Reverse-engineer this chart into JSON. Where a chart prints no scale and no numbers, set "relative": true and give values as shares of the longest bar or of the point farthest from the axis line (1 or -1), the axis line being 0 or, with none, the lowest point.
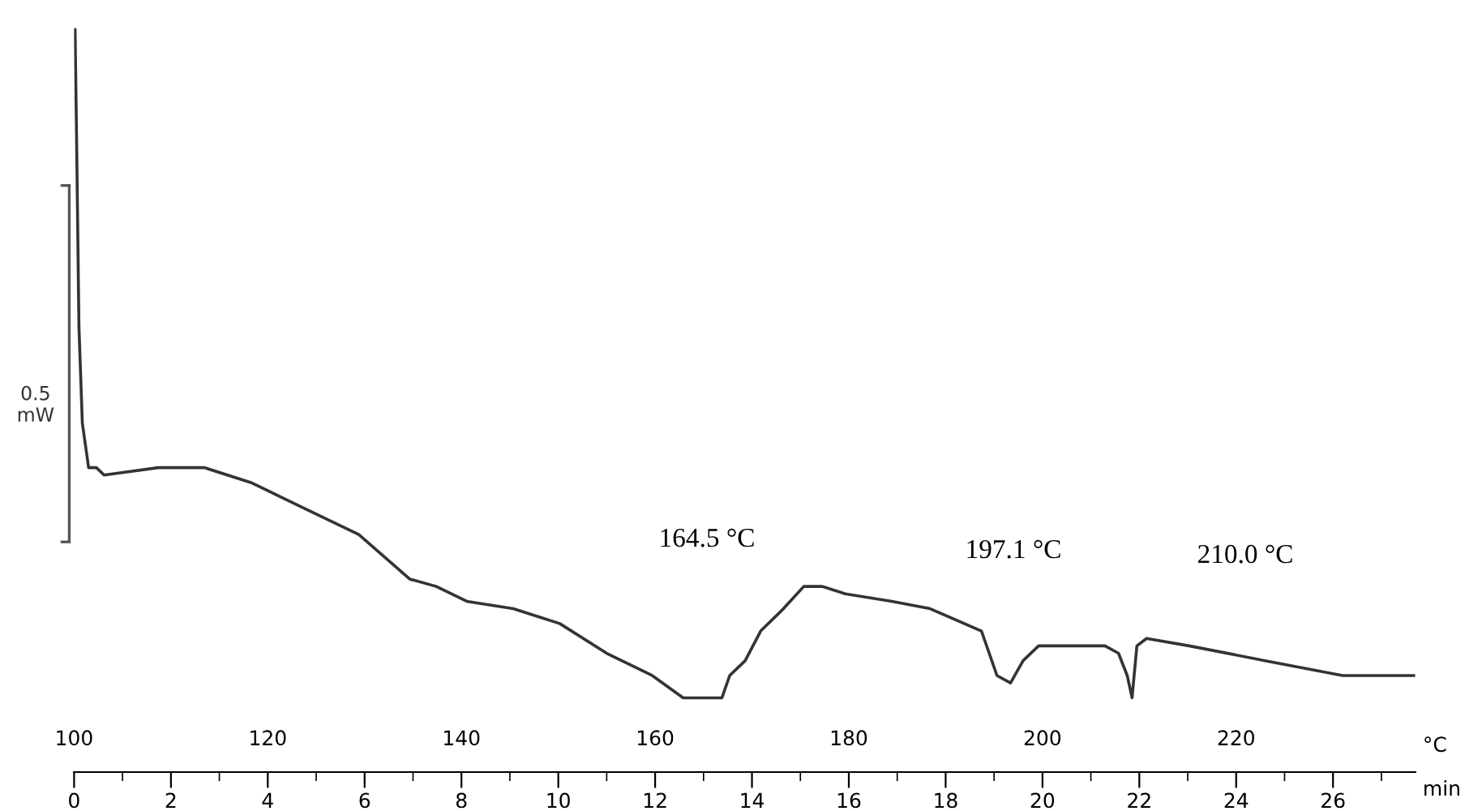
{
  "chart_data": {
    "type": "line",
    "relative": true,
    "ylabel": "0.5\nmW",
    "xlabel": "min",
    "x2label": "°C",
    "xlim": [
      0,
      27.7
    ],
    "xticks": [
      0,
      2,
      4,
      6,
      8,
      10,
      12,
      14,
      16,
      18,
      20,
      22,
      24,
      26
    ],
    "x2lim": [
      100,
      238.5
    ],
    "x2ticks": [
      100,
      120,
      140,
      160,
      180,
      200,
      220
    ],
    "grid": false,
    "legend": false,
    "annotations": [
      "164.5 °C",
      "197.1 °C",
      "210.0 °C"
    ],
    "series": [
      {
        "color": "#333333",
        "x": [
          0.02,
          0.05,
          0.1,
          0.17,
          0.3,
          0.46,
          0.62,
          1.74,
          2.05,
          2.69,
          3.65,
          4.6,
          5.88,
          6.93,
          7.48,
          8.11,
          9.07,
          10.03,
          11.0,
          11.94,
          12.58,
          13.06,
          13.38,
          13.54,
          13.86,
          14.18,
          14.65,
          15.07,
          15.45,
          15.93,
          16.89,
          17.68,
          18.74,
          19.06,
          19.34,
          19.6,
          19.92,
          20.65,
          21.29,
          21.57,
          21.75,
          21.85,
          21.95,
          22.15,
          23.03,
          24.6,
          26.2,
          27.67
        ],
        "values": [
          1.0,
          0.86,
          0.6,
          0.47,
          0.41,
          0.41,
          0.4,
          0.41,
          0.41,
          0.41,
          0.39,
          0.36,
          0.32,
          0.26,
          0.25,
          0.23,
          0.22,
          0.2,
          0.16,
          0.13,
          0.1,
          0.1,
          0.1,
          0.13,
          0.15,
          0.19,
          0.22,
          0.25,
          0.25,
          0.24,
          0.23,
          0.22,
          0.19,
          0.13,
          0.12,
          0.15,
          0.17,
          0.17,
          0.17,
          0.16,
          0.13,
          0.1,
          0.17,
          0.18,
          0.17,
          0.15,
          0.13,
          0.13
        ]
      }
    ]
  }
}
